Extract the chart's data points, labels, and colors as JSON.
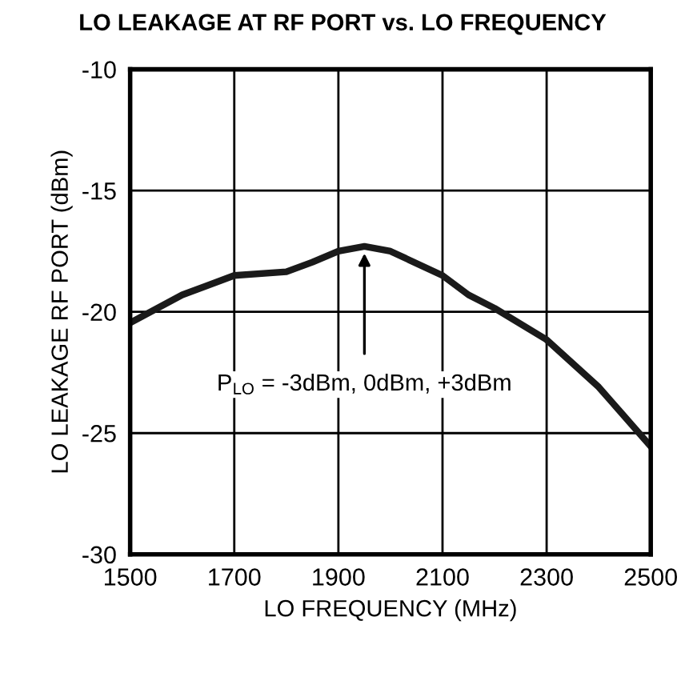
{
  "chart_data": {
    "type": "line",
    "title": "LO LEAKAGE AT RF PORT vs. LO FREQUENCY",
    "xlabel": "LO FREQUENCY (MHz)",
    "ylabel": "LO LEAKAGE RF PORT (dBm)",
    "x": [
      1500,
      1600,
      1700,
      1800,
      1850,
      1900,
      1950,
      2000,
      2100,
      2150,
      2200,
      2300,
      2400,
      2500
    ],
    "series": [
      {
        "color": "#1a1a1a",
        "values": [
          -20.45,
          -19.3,
          -18.5,
          -18.35,
          -17.95,
          -17.5,
          -17.3,
          -17.5,
          -18.5,
          -19.3,
          -19.85,
          -21.15,
          -23.1,
          -25.55
        ]
      }
    ],
    "xlim": [
      1500,
      2500
    ],
    "ylim": [
      -30,
      -10
    ],
    "xticks": [
      1500,
      1700,
      1900,
      2100,
      2300,
      2500
    ],
    "yticks": [
      -30,
      -25,
      -20,
      -15,
      -10
    ],
    "grid": true,
    "legend": false,
    "marker": "none",
    "line_style": "solid",
    "annotations": [
      {
        "text": "P$_{LO}$ = -3dBm, 0dBm, +3dBm",
        "x": 1950,
        "y": -17.4
      }
    ]
  }
}
